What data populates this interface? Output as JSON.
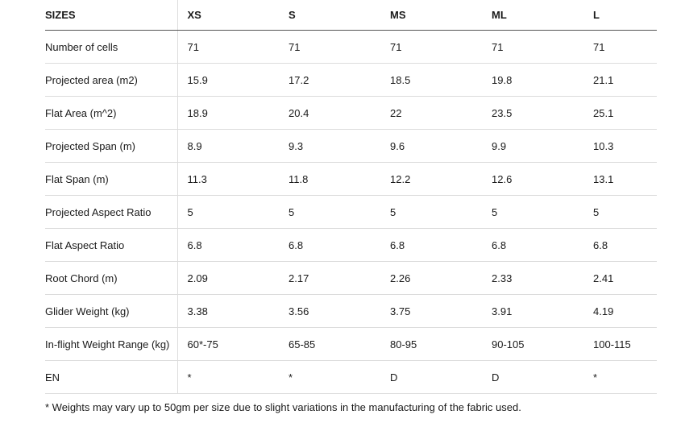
{
  "table": {
    "header": {
      "label": "SIZES",
      "sizes": [
        "XS",
        "S",
        "MS",
        "ML",
        "L"
      ]
    },
    "rows": [
      {
        "label": "Number of cells",
        "values": [
          "71",
          "71",
          "71",
          "71",
          "71"
        ]
      },
      {
        "label": "Projected area (m2)",
        "values": [
          "15.9",
          "17.2",
          "18.5",
          "19.8",
          "21.1"
        ]
      },
      {
        "label": "Flat Area (m^2)",
        "values": [
          "18.9",
          "20.4",
          "22",
          "23.5",
          "25.1"
        ]
      },
      {
        "label": "Projected Span (m)",
        "values": [
          "8.9",
          "9.3",
          "9.6",
          "9.9",
          "10.3"
        ]
      },
      {
        "label": "Flat Span (m)",
        "values": [
          "11.3",
          "11.8",
          "12.2",
          "12.6",
          "13.1"
        ]
      },
      {
        "label": "Projected Aspect Ratio",
        "values": [
          "5",
          "5",
          "5",
          "5",
          "5"
        ]
      },
      {
        "label": "Flat Aspect Ratio",
        "values": [
          "6.8",
          "6.8",
          "6.8",
          "6.8",
          "6.8"
        ]
      },
      {
        "label": "Root Chord (m)",
        "values": [
          "2.09",
          "2.17",
          "2.26",
          "2.33",
          "2.41"
        ]
      },
      {
        "label": "Glider Weight (kg)",
        "values": [
          "3.38",
          "3.56",
          "3.75",
          "3.91",
          "4.19"
        ]
      },
      {
        "label": "In-flight Weight Range (kg)",
        "values": [
          "60*-75",
          "65-85",
          "80-95",
          "90-105",
          "100-115"
        ]
      },
      {
        "label": "EN",
        "values": [
          "*",
          "*",
          "D",
          "D",
          "*"
        ]
      }
    ]
  },
  "footnote": "* Weights may vary up to 50gm per size due to slight variations in the manufacturing of the fabric used."
}
